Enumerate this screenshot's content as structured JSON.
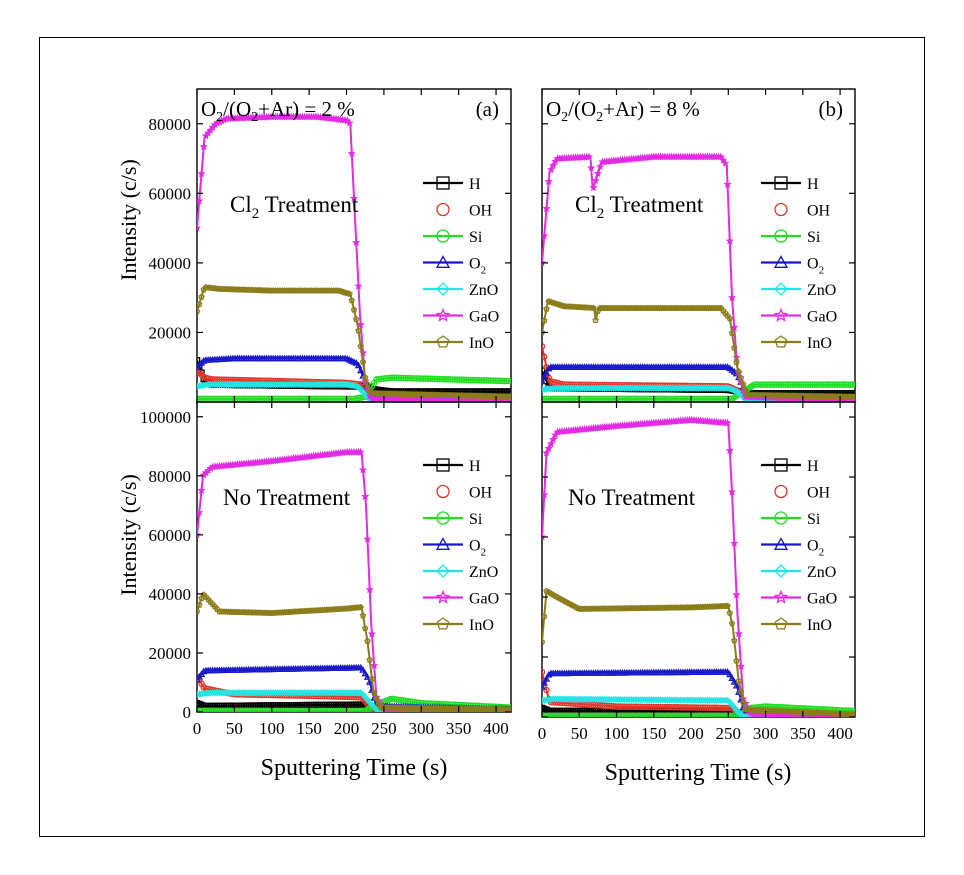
{
  "figure": {
    "y_label": "Intensity (c/s)",
    "x_label": "Sputtering Time (s)",
    "x_ticks": [
      "0",
      "50",
      "100",
      "150",
      "200",
      "250",
      "300",
      "350",
      "400"
    ],
    "y_ticks_top": [
      "20000",
      "40000",
      "60000",
      "80000"
    ],
    "y_ticks_bottom": [
      "0",
      "20000",
      "40000",
      "60000",
      "80000",
      "100000"
    ],
    "legend_subscript_2": "2"
  },
  "legend_series": [
    {
      "name": "H",
      "color": "#000000",
      "marker": "square"
    },
    {
      "name": "OH",
      "color": "#e0382a",
      "marker": "circle"
    },
    {
      "name": "Si",
      "color": "#22dd22",
      "marker": "circle"
    },
    {
      "name": "O2",
      "color": "#1818c8",
      "marker": "triangle"
    },
    {
      "name": "ZnO",
      "color": "#22e6e6",
      "marker": "diamond"
    },
    {
      "name": "GaO",
      "color": "#e22be2",
      "marker": "star"
    },
    {
      "name": "InO",
      "color": "#8b7d1a",
      "marker": "pentagon"
    }
  ],
  "panels_text": {
    "a": {
      "condition_pre": "O",
      "condition_mid": "/(O",
      "condition_post": "+Ar) = 2 %",
      "tag": "(a)"
    },
    "b": {
      "condition_pre": "O",
      "condition_mid": "/(O",
      "condition_post": "+Ar) = 8 %",
      "tag": "(b)"
    },
    "cl2_pre": "Cl",
    "cl2_post": " Treatment",
    "no_treatment": "No Treatment"
  },
  "chart_data": [
    {
      "type": "line",
      "panel": "a-top",
      "title": "O2/(O2+Ar) = 2 %  Cl2 Treatment",
      "xlabel": "Sputtering Time (s)",
      "ylabel": "Intensity (c/s)",
      "xlim": [
        0,
        420
      ],
      "ylim": [
        0,
        90000
      ],
      "series": [
        {
          "name": "H",
          "points": [
            [
              0,
              12000
            ],
            [
              10,
              6000
            ],
            [
              20,
              5000
            ],
            [
              200,
              4500
            ],
            [
              225,
              4500
            ],
            [
              240,
              3500
            ],
            [
              260,
              3000
            ],
            [
              420,
              3000
            ]
          ]
        },
        {
          "name": "OH",
          "points": [
            [
              0,
              9000
            ],
            [
              10,
              7000
            ],
            [
              20,
              6500
            ],
            [
              200,
              5500
            ],
            [
              220,
              5000
            ],
            [
              232,
              1000
            ],
            [
              420,
              600
            ]
          ]
        },
        {
          "name": "Si",
          "points": [
            [
              0,
              900
            ],
            [
              210,
              900
            ],
            [
              225,
              1500
            ],
            [
              240,
              6500
            ],
            [
              260,
              7000
            ],
            [
              420,
              6000
            ]
          ]
        },
        {
          "name": "O2",
          "points": [
            [
              0,
              10000
            ],
            [
              10,
              12000
            ],
            [
              50,
              12500
            ],
            [
              200,
              12500
            ],
            [
              215,
              11000
            ],
            [
              232,
              2500
            ],
            [
              260,
              1500
            ],
            [
              420,
              1500
            ]
          ]
        },
        {
          "name": "ZnO",
          "points": [
            [
              0,
              4500
            ],
            [
              15,
              5000
            ],
            [
              200,
              5000
            ],
            [
              215,
              4500
            ],
            [
              232,
              500
            ],
            [
              420,
              300
            ]
          ]
        },
        {
          "name": "GaO",
          "points": [
            [
              0,
              50000
            ],
            [
              10,
              76000
            ],
            [
              25,
              80000
            ],
            [
              40,
              81500
            ],
            [
              100,
              82000
            ],
            [
              160,
              82000
            ],
            [
              200,
              81000
            ],
            [
              205,
              80000
            ],
            [
              212,
              50000
            ],
            [
              218,
              25000
            ],
            [
              225,
              6000
            ],
            [
              232,
              1000
            ],
            [
              420,
              500
            ]
          ]
        },
        {
          "name": "InO",
          "points": [
            [
              0,
              26000
            ],
            [
              10,
              33000
            ],
            [
              30,
              32500
            ],
            [
              100,
              32000
            ],
            [
              190,
              32000
            ],
            [
              205,
              31000
            ],
            [
              215,
              22000
            ],
            [
              225,
              7000
            ],
            [
              232,
              2500
            ],
            [
              420,
              1500
            ]
          ]
        }
      ]
    },
    {
      "type": "line",
      "panel": "b-top",
      "title": "O2/(O2+Ar) = 8 %  Cl2 Treatment",
      "xlabel": "Sputtering Time (s)",
      "ylabel": "Intensity (c/s)",
      "xlim": [
        0,
        420
      ],
      "ylim": [
        0,
        90000
      ],
      "series": [
        {
          "name": "H",
          "points": [
            [
              0,
              9000
            ],
            [
              10,
              4000
            ],
            [
              250,
              3500
            ],
            [
              265,
              3000
            ],
            [
              280,
              2500
            ],
            [
              420,
              2500
            ]
          ]
        },
        {
          "name": "OH",
          "points": [
            [
              0,
              16000
            ],
            [
              10,
              6000
            ],
            [
              30,
              5000
            ],
            [
              250,
              4500
            ],
            [
              265,
              3000
            ],
            [
              275,
              700
            ],
            [
              420,
              500
            ]
          ]
        },
        {
          "name": "Si",
          "points": [
            [
              0,
              900
            ],
            [
              255,
              900
            ],
            [
              270,
              3000
            ],
            [
              285,
              5000
            ],
            [
              420,
              5000
            ]
          ]
        },
        {
          "name": "O2",
          "points": [
            [
              0,
              6000
            ],
            [
              10,
              10000
            ],
            [
              250,
              10000
            ],
            [
              262,
              8000
            ],
            [
              275,
              2000
            ],
            [
              420,
              1000
            ]
          ]
        },
        {
          "name": "ZnO",
          "points": [
            [
              0,
              3500
            ],
            [
              15,
              4000
            ],
            [
              250,
              4000
            ],
            [
              262,
              3000
            ],
            [
              275,
              400
            ],
            [
              420,
              300
            ]
          ]
        },
        {
          "name": "GaO",
          "points": [
            [
              0,
              40000
            ],
            [
              10,
              66000
            ],
            [
              20,
              70000
            ],
            [
              65,
              70500
            ],
            [
              68,
              61000
            ],
            [
              80,
              69000
            ],
            [
              150,
              70500
            ],
            [
              240,
              70500
            ],
            [
              248,
              68000
            ],
            [
              255,
              30000
            ],
            [
              262,
              10000
            ],
            [
              272,
              1500
            ],
            [
              420,
              500
            ]
          ]
        },
        {
          "name": "InO",
          "points": [
            [
              0,
              20000
            ],
            [
              8,
              29000
            ],
            [
              30,
              27500
            ],
            [
              70,
              27000
            ],
            [
              72,
              23500
            ],
            [
              76,
              27000
            ],
            [
              240,
              27000
            ],
            [
              252,
              24000
            ],
            [
              262,
              10000
            ],
            [
              275,
              2000
            ],
            [
              420,
              1500
            ]
          ]
        }
      ]
    },
    {
      "type": "line",
      "panel": "a-bottom",
      "title": "O2/(O2+Ar) = 2 %  No Treatment",
      "xlabel": "Sputtering Time (s)",
      "ylabel": "Intensity (c/s)",
      "xlim": [
        0,
        420
      ],
      "ylim": [
        0,
        105000
      ],
      "series": [
        {
          "name": "H",
          "points": [
            [
              0,
              3000
            ],
            [
              10,
              2000
            ],
            [
              220,
              2500
            ],
            [
              232,
              1500
            ],
            [
              250,
              1200
            ],
            [
              420,
              1000
            ]
          ]
        },
        {
          "name": "OH",
          "points": [
            [
              0,
              12000
            ],
            [
              10,
              8000
            ],
            [
              50,
              6000
            ],
            [
              150,
              5500
            ],
            [
              220,
              5000
            ],
            [
              235,
              700
            ],
            [
              420,
              300
            ]
          ]
        },
        {
          "name": "Si",
          "points": [
            [
              0,
              400
            ],
            [
              225,
              400
            ],
            [
              240,
              2500
            ],
            [
              260,
              4500
            ],
            [
              300,
              3000
            ],
            [
              420,
              1500
            ]
          ]
        },
        {
          "name": "O2",
          "points": [
            [
              0,
              11000
            ],
            [
              10,
              14000
            ],
            [
              220,
              15000
            ],
            [
              230,
              11000
            ],
            [
              240,
              2000
            ],
            [
              420,
              800
            ]
          ]
        },
        {
          "name": "ZnO",
          "points": [
            [
              0,
              6000
            ],
            [
              20,
              6500
            ],
            [
              220,
              6500
            ],
            [
              232,
              3000
            ],
            [
              242,
              300
            ],
            [
              420,
              200
            ]
          ]
        },
        {
          "name": "GaO",
          "points": [
            [
              0,
              60000
            ],
            [
              8,
              80000
            ],
            [
              20,
              83000
            ],
            [
              100,
              85000
            ],
            [
              200,
              88000
            ],
            [
              220,
              88000
            ],
            [
              226,
              70000
            ],
            [
              233,
              30000
            ],
            [
              240,
              5000
            ],
            [
              250,
              800
            ],
            [
              420,
              500
            ]
          ]
        },
        {
          "name": "InO",
          "points": [
            [
              0,
              34000
            ],
            [
              8,
              40000
            ],
            [
              30,
              34000
            ],
            [
              100,
              33500
            ],
            [
              200,
              35000
            ],
            [
              220,
              35500
            ],
            [
              228,
              24000
            ],
            [
              236,
              7000
            ],
            [
              245,
              1500
            ],
            [
              420,
              800
            ]
          ]
        }
      ]
    },
    {
      "type": "line",
      "panel": "b-bottom",
      "title": "O2/(O2+Ar) = 8 %  No Treatment",
      "xlabel": "Sputtering Time (s)",
      "ylabel": "Intensity (c/s)",
      "xlim": [
        0,
        420
      ],
      "ylim": [
        0,
        105000
      ],
      "series": [
        {
          "name": "H",
          "points": [
            [
              0,
              3000
            ],
            [
              10,
              2000
            ],
            [
              255,
              2000
            ],
            [
              265,
              1000
            ],
            [
              420,
              500
            ]
          ]
        },
        {
          "name": "OH",
          "points": [
            [
              0,
              15000
            ],
            [
              10,
              5000
            ],
            [
              100,
              3500
            ],
            [
              255,
              3000
            ],
            [
              268,
              1000
            ],
            [
              280,
              300
            ],
            [
              420,
              200
            ]
          ]
        },
        {
          "name": "Si",
          "points": [
            [
              0,
              400
            ],
            [
              265,
              400
            ],
            [
              280,
              3000
            ],
            [
              300,
              3500
            ],
            [
              420,
              2000
            ]
          ]
        },
        {
          "name": "O2",
          "points": [
            [
              0,
              10000
            ],
            [
              10,
              14500
            ],
            [
              250,
              15000
            ],
            [
              262,
              10000
            ],
            [
              272,
              1500
            ],
            [
              420,
              500
            ]
          ]
        },
        {
          "name": "ZnO",
          "points": [
            [
              0,
              5500
            ],
            [
              15,
              6000
            ],
            [
              250,
              5500
            ],
            [
              262,
              2000
            ],
            [
              270,
              200
            ],
            [
              420,
              100
            ]
          ]
        },
        {
          "name": "GaO",
          "points": [
            [
              0,
              60000
            ],
            [
              6,
              88000
            ],
            [
              20,
              95000
            ],
            [
              100,
              97000
            ],
            [
              200,
              99000
            ],
            [
              250,
              98000
            ],
            [
              255,
              75000
            ],
            [
              262,
              35000
            ],
            [
              270,
              6000
            ],
            [
              280,
              1000
            ],
            [
              420,
              500
            ]
          ]
        },
        {
          "name": "InO",
          "points": [
            [
              0,
              25000
            ],
            [
              6,
              42000
            ],
            [
              20,
              40000
            ],
            [
              50,
              36000
            ],
            [
              200,
              36500
            ],
            [
              250,
              37000
            ],
            [
              256,
              30000
            ],
            [
              264,
              12000
            ],
            [
              272,
              2500
            ],
            [
              420,
              800
            ]
          ]
        }
      ]
    }
  ]
}
